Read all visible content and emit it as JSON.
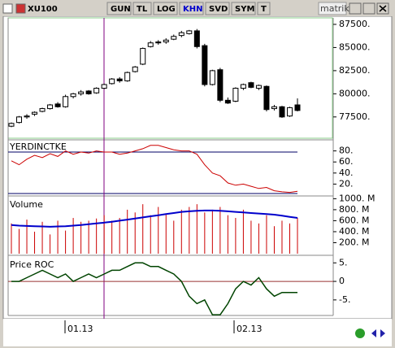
{
  "toolbar": {
    "symbol": "XU100",
    "buttons": [
      "GUN",
      "TL",
      "LOG",
      "KHN",
      "SVD",
      "SYM",
      "T"
    ],
    "active_button": "KHN",
    "logo": "matriks"
  },
  "dates": [
    "01.13",
    "02.13"
  ],
  "price_panel": {
    "type": "candlestick",
    "ylim": [
      75200,
      88200
    ],
    "yticks": [
      {
        "value": 87500,
        "label": "87500."
      },
      {
        "value": 85000,
        "label": "85000."
      },
      {
        "value": 82500,
        "label": "82500."
      },
      {
        "value": 80000,
        "label": "80000."
      },
      {
        "value": 77500,
        "label": "77500."
      }
    ],
    "up_color": "#ffffff",
    "down_color": "#000000",
    "open": [
      76500,
      76900,
      77500,
      77800,
      78100,
      78400,
      78900,
      78600,
      79700,
      80000,
      80300,
      80100,
      80600,
      81100,
      81600,
      81400,
      82400,
      83200,
      85100,
      85600,
      85600,
      85900,
      86300,
      86500,
      86800,
      85200,
      81000,
      82600,
      79300,
      79200,
      80600,
      81200,
      80600,
      80800,
      78400,
      78600,
      77600,
      78800
    ],
    "high": [
      76900,
      77600,
      77800,
      78100,
      78500,
      78900,
      79100,
      79900,
      80100,
      80400,
      80400,
      80700,
      81100,
      81700,
      81800,
      82400,
      83000,
      85000,
      85700,
      85800,
      86000,
      86400,
      86800,
      86900,
      87000,
      85400,
      82600,
      82800,
      79600,
      80700,
      81100,
      81300,
      81000,
      80900,
      78800,
      78700,
      78600,
      79500
    ],
    "low": [
      76400,
      76800,
      77300,
      77600,
      78000,
      78300,
      78500,
      78500,
      79500,
      79800,
      79900,
      80000,
      80500,
      81000,
      81200,
      81300,
      82300,
      83100,
      85000,
      85300,
      85400,
      85800,
      86100,
      86400,
      84900,
      80800,
      80900,
      79100,
      78900,
      79100,
      80400,
      80600,
      80400,
      78100,
      78200,
      77400,
      77500,
      78100
    ],
    "close": [
      76800,
      77500,
      77600,
      78000,
      78400,
      78800,
      78600,
      79700,
      80000,
      80200,
      80000,
      80600,
      81000,
      81600,
      81400,
      82300,
      82900,
      84900,
      85500,
      85500,
      85800,
      86200,
      86600,
      86800,
      85100,
      81000,
      82500,
      79300,
      79000,
      80600,
      81000,
      80700,
      80900,
      78300,
      78600,
      77500,
      78500,
      78200
    ]
  },
  "indicator_panel": {
    "type": "line",
    "title": "YERDINCTKE",
    "ylim": [
      0,
      100
    ],
    "yticks": [
      {
        "value": 80,
        "label": "80."
      },
      {
        "value": 60,
        "label": "60."
      },
      {
        "value": 40,
        "label": "40."
      },
      {
        "value": 20,
        "label": "20."
      }
    ],
    "color": "#cc0000",
    "values": [
      62,
      55,
      65,
      72,
      68,
      75,
      70,
      80,
      74,
      78,
      76,
      80,
      78,
      78,
      74,
      76,
      80,
      84,
      90,
      90,
      86,
      82,
      80,
      80,
      74,
      55,
      40,
      35,
      22,
      18,
      20,
      16,
      12,
      14,
      8,
      6,
      5,
      7
    ]
  },
  "volume_panel": {
    "type": "bar",
    "title": "Volume",
    "ylim": [
      0,
      1050
    ],
    "yticks": [
      {
        "value": 1000,
        "label": "1000. M"
      },
      {
        "value": 800,
        "label": "800. M"
      },
      {
        "value": 600,
        "label": "600. M"
      },
      {
        "value": 400,
        "label": "400. M"
      },
      {
        "value": 200,
        "label": "200. M"
      }
    ],
    "color": "#cc0000",
    "ma_color": "#0000cc",
    "values": [
      550,
      450,
      620,
      400,
      580,
      350,
      600,
      420,
      650,
      580,
      600,
      640,
      700,
      600,
      650,
      800,
      750,
      900,
      700,
      850,
      720,
      600,
      800,
      850,
      900,
      750,
      800,
      850,
      700,
      650,
      800,
      600,
      550,
      700,
      500,
      600,
      550,
      650
    ],
    "ma": [
      520,
      510,
      505,
      500,
      495,
      490,
      495,
      500,
      510,
      520,
      535,
      550,
      565,
      580,
      600,
      620,
      640,
      660,
      680,
      700,
      720,
      740,
      760,
      770,
      780,
      785,
      785,
      780,
      770,
      760,
      750,
      740,
      730,
      720,
      710,
      690,
      670,
      650
    ]
  },
  "roc_panel": {
    "type": "line",
    "title": "Price ROC",
    "ylim": [
      -9.2,
      6.6
    ],
    "yticks": [
      {
        "value": 5,
        "label": "5."
      },
      0,
      {
        "value": -5,
        "label": "-5."
      }
    ],
    "color": "#004400",
    "zero_color": "#993333",
    "values": [
      0,
      0,
      1,
      2,
      3,
      2,
      1,
      2,
      0,
      1,
      2,
      1,
      2,
      3,
      3,
      4,
      5,
      5,
      4,
      4,
      3,
      2,
      0,
      -4,
      -6,
      -5,
      -9,
      -9,
      -6,
      -2,
      0,
      -1,
      1,
      -2,
      -4,
      -3,
      -3,
      -3
    ]
  }
}
